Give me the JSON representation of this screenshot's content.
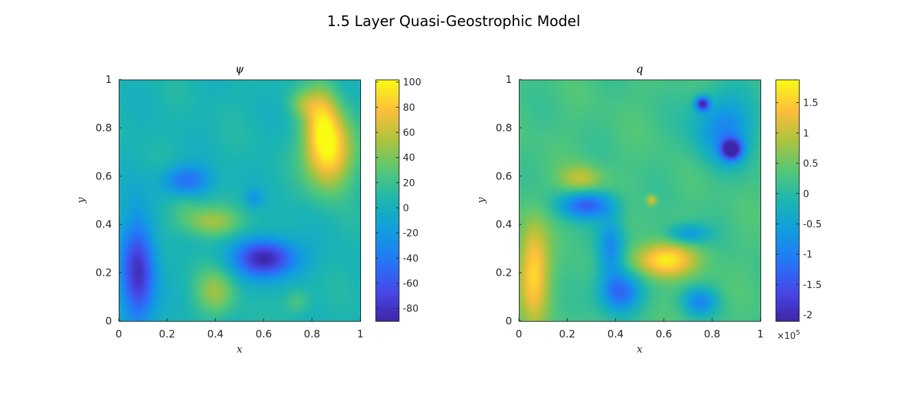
{
  "figure": {
    "title": "1.5 Layer Quasi-Geostrophic Model"
  },
  "chart_data": [
    {
      "type": "heatmap",
      "title": "ψ",
      "xlabel": "x",
      "ylabel": "y",
      "xlim": [
        0,
        1
      ],
      "ylim": [
        0,
        1
      ],
      "xticks": [
        "0",
        "0.2",
        "0.4",
        "0.6",
        "0.8",
        "1"
      ],
      "yticks": [
        "0",
        "0.2",
        "0.4",
        "0.6",
        "0.8",
        "1"
      ],
      "colormap": "parula",
      "clim": [
        -90,
        102
      ],
      "colorbar": {
        "ticks": [
          100,
          80,
          60,
          40,
          20,
          0,
          -20,
          -40,
          -60,
          -80
        ],
        "tick_labels": [
          "100",
          "80",
          "60",
          "40",
          "20",
          "0",
          "-20",
          "-40",
          "-60",
          "-80"
        ],
        "exponent_label": ""
      },
      "background": 5,
      "features": [
        {
          "x": 0.87,
          "y": 0.7,
          "sx": 0.07,
          "sy": 0.11,
          "v": 95
        },
        {
          "x": 0.84,
          "y": 0.85,
          "sx": 0.05,
          "sy": 0.1,
          "v": 60
        },
        {
          "x": 0.76,
          "y": 0.9,
          "sx": 0.04,
          "sy": 0.04,
          "v": 30
        },
        {
          "x": 0.08,
          "y": 0.2,
          "sx": 0.05,
          "sy": 0.16,
          "v": -82
        },
        {
          "x": 0.61,
          "y": 0.26,
          "sx": 0.09,
          "sy": 0.055,
          "v": -90
        },
        {
          "x": 0.28,
          "y": 0.58,
          "sx": 0.07,
          "sy": 0.045,
          "v": -48
        },
        {
          "x": 0.38,
          "y": 0.41,
          "sx": 0.09,
          "sy": 0.045,
          "v": 48
        },
        {
          "x": 0.4,
          "y": 0.12,
          "sx": 0.06,
          "sy": 0.07,
          "v": 45
        },
        {
          "x": 0.74,
          "y": 0.08,
          "sx": 0.04,
          "sy": 0.04,
          "v": 28
        },
        {
          "x": 0.27,
          "y": 0.48,
          "sx": 0.05,
          "sy": 0.05,
          "v": 22
        },
        {
          "x": 0.56,
          "y": 0.51,
          "sx": 0.025,
          "sy": 0.025,
          "v": -20
        }
      ]
    },
    {
      "type": "heatmap",
      "title": "q",
      "xlabel": "x",
      "ylabel": "y",
      "xlim": [
        0,
        1
      ],
      "ylim": [
        0,
        1
      ],
      "xticks": [
        "0",
        "0.2",
        "0.4",
        "0.6",
        "0.8",
        "1"
      ],
      "yticks": [
        "0",
        "0.2",
        "0.4",
        "0.6",
        "0.8",
        "1"
      ],
      "colormap": "parula",
      "clim": [
        -2.1,
        1.88
      ],
      "colorbar": {
        "ticks": [
          1.5,
          1,
          0.5,
          0,
          -0.5,
          -1,
          -1.5,
          -2
        ],
        "tick_labels": [
          "1.5",
          "1",
          "0.5",
          "0",
          "-0.5",
          "-1",
          "-1.5",
          "-2"
        ],
        "exponent_label": "×10",
        "exponent_power": "5"
      },
      "background": 0.25,
      "features": [
        {
          "x": 0.06,
          "y": 0.2,
          "sx": 0.045,
          "sy": 0.14,
          "v": 1.6
        },
        {
          "x": 0.6,
          "y": 0.25,
          "sx": 0.09,
          "sy": 0.05,
          "v": 1.75
        },
        {
          "x": 0.26,
          "y": 0.59,
          "sx": 0.06,
          "sy": 0.04,
          "v": 1.0
        },
        {
          "x": 0.28,
          "y": 0.48,
          "sx": 0.08,
          "sy": 0.04,
          "v": -1.3
        },
        {
          "x": 0.88,
          "y": 0.71,
          "sx": 0.03,
          "sy": 0.03,
          "v": -2.1
        },
        {
          "x": 0.76,
          "y": 0.9,
          "sx": 0.02,
          "sy": 0.02,
          "v": -1.9
        },
        {
          "x": 0.85,
          "y": 0.8,
          "sx": 0.09,
          "sy": 0.1,
          "v": -0.9
        },
        {
          "x": 0.42,
          "y": 0.12,
          "sx": 0.06,
          "sy": 0.06,
          "v": -1.3
        },
        {
          "x": 0.75,
          "y": 0.08,
          "sx": 0.05,
          "sy": 0.04,
          "v": -0.8
        },
        {
          "x": 0.55,
          "y": 0.5,
          "sx": 0.015,
          "sy": 0.015,
          "v": 1.2
        },
        {
          "x": 0.38,
          "y": 0.3,
          "sx": 0.04,
          "sy": 0.09,
          "v": -0.9
        },
        {
          "x": 0.7,
          "y": 0.36,
          "sx": 0.06,
          "sy": 0.03,
          "v": -0.7
        }
      ]
    }
  ]
}
